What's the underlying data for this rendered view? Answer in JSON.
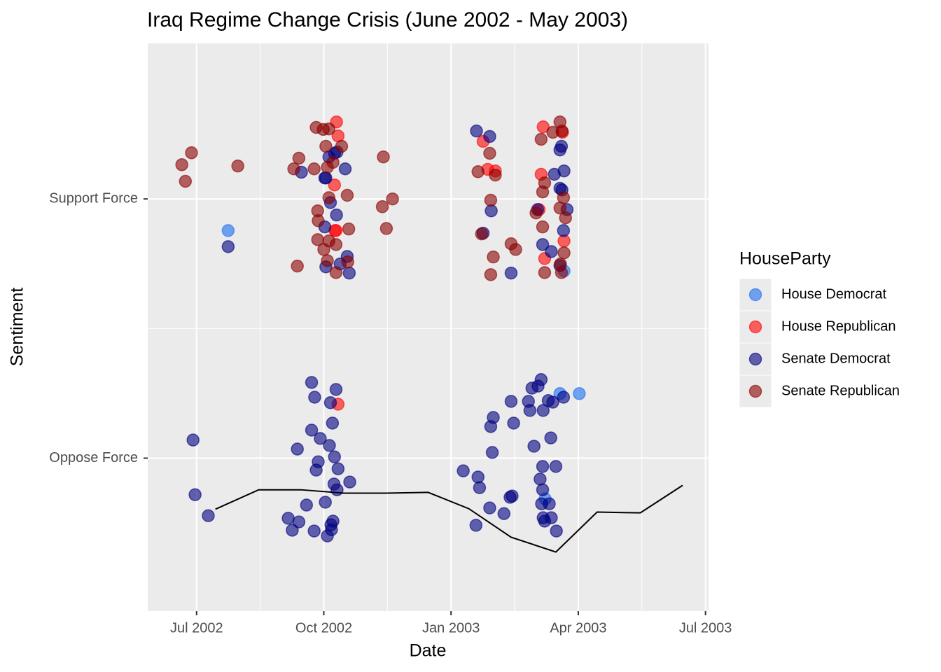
{
  "chart_data": {
    "type": "scatter",
    "title": "Iraq Regime Change Crisis (June 2002 - May 2003)",
    "x_label": "Date",
    "y_label": "Sentiment",
    "legend_title": "HouseParty",
    "legend_position": "right",
    "grid": true,
    "xlim": [
      2002.404,
      2003.506
    ],
    "xticks": [
      {
        "value": 2002.5,
        "label": "Jul 2002"
      },
      {
        "value": 2002.75,
        "label": "Oct 2002"
      },
      {
        "value": 2003.0,
        "label": "Jan 2003"
      },
      {
        "value": 2003.25,
        "label": "Apr 2003"
      },
      {
        "value": 2003.5,
        "label": "Jul 2003"
      }
    ],
    "ylim": [
      0.41,
      2.6
    ],
    "yticks": [
      {
        "value": 1,
        "label": "Oppose Force"
      },
      {
        "value": 2,
        "label": "Support Force"
      }
    ],
    "series": [
      {
        "name": "House Democrat",
        "color": "#1c6ef0",
        "x": [
          2002.562,
          2003.222,
          2003.214,
          2003.185,
          2003.252
        ],
        "values": [
          1.878,
          1.722,
          1.249,
          0.843,
          1.249
        ]
      },
      {
        "name": "House Republican",
        "color": "#ff0000",
        "x": [
          2002.775,
          2002.778,
          2002.771,
          2002.774,
          2003.063,
          2003.072,
          2003.087,
          2003.181,
          2003.177,
          2003.219,
          2003.173,
          2003.222,
          2002.778,
          2002.772,
          2003.184
        ],
        "values": [
          2.297,
          2.243,
          2.054,
          1.878,
          2.222,
          2.114,
          2.108,
          2.278,
          2.095,
          2.257,
          1.959,
          1.838,
          1.208,
          1.878,
          1.77
        ]
      },
      {
        "name": "Senate Democrat",
        "color": "#000080",
        "x": [
          2002.706,
          2002.754,
          2002.76,
          2002.771,
          2002.776,
          2002.792,
          2002.763,
          2002.775,
          2002.796,
          2002.754,
          2002.782,
          2002.8,
          2002.752,
          2003.05,
          2003.076,
          2003.079,
          2003.063,
          2003.118,
          2003.217,
          2003.214,
          2003.222,
          2003.203,
          2003.214,
          2003.218,
          2003.228,
          2003.17,
          2003.18,
          2003.197,
          2003.221,
          2003.214,
          2002.562,
          2002.752,
          2002.493,
          2002.497,
          2002.523,
          2002.68,
          2002.688,
          2002.701,
          2002.726,
          2002.732,
          2002.698,
          2002.726,
          2002.735,
          2002.739,
          2002.743,
          2002.716,
          2002.731,
          2002.753,
          2002.764,
          2002.765,
          2002.768,
          2002.774,
          2002.763,
          2002.767,
          2002.761,
          2002.771,
          2002.77,
          2002.776,
          2002.801,
          2002.778,
          2003.024,
          2003.053,
          2003.056,
          2003.049,
          2003.076,
          2003.104,
          2003.116,
          2003.12,
          2003.081,
          2003.078,
          2003.083,
          2003.123,
          2003.118,
          2003.152,
          2003.159,
          2003.171,
          2003.177,
          2003.191,
          2003.163,
          2003.196,
          2003.155,
          2003.18,
          2003.175,
          2003.18,
          2003.178,
          2003.181,
          2003.184,
          2003.197,
          2003.207,
          2003.206,
          2003.181,
          2003.2,
          2003.221,
          2003.193,
          2002.757
        ],
        "values": [
          2.103,
          2.081,
          2.162,
          2.176,
          2.181,
          2.116,
          1.986,
          1.938,
          1.778,
          1.738,
          1.749,
          1.714,
          1.892,
          2.262,
          2.241,
          1.954,
          1.868,
          1.714,
          2.203,
          2.189,
          2.108,
          2.095,
          2.041,
          2.035,
          1.959,
          1.959,
          1.824,
          1.797,
          1.878,
          1.743,
          1.816,
          2.081,
          1.07,
          0.859,
          0.778,
          0.768,
          0.722,
          0.754,
          1.292,
          1.235,
          1.035,
          1.108,
          0.954,
          0.986,
          1.076,
          0.819,
          0.719,
          0.83,
          0.743,
          0.724,
          0.757,
          1.265,
          1.214,
          1.135,
          1.049,
          1.005,
          0.9,
          0.878,
          0.908,
          0.959,
          0.951,
          0.927,
          0.886,
          0.741,
          0.808,
          0.786,
          0.849,
          0.854,
          1.022,
          1.122,
          1.157,
          1.135,
          1.219,
          1.219,
          1.27,
          1.278,
          1.303,
          1.222,
          1.046,
          1.078,
          1.184,
          0.968,
          0.919,
          0.878,
          0.824,
          0.77,
          0.757,
          0.77,
          0.719,
          0.968,
          1.184,
          1.216,
          1.235,
          0.824,
          0.7
        ]
      },
      {
        "name": "Senate Republican",
        "color": "#8b0000",
        "x": [
          2002.471,
          2002.49,
          2002.478,
          2002.581,
          2002.735,
          2002.749,
          2002.76,
          2002.701,
          2002.691,
          2002.731,
          2002.757,
          2002.768,
          2002.738,
          2002.76,
          2002.796,
          2002.739,
          2002.738,
          2002.75,
          2002.76,
          2002.774,
          2002.799,
          2002.698,
          2002.757,
          2002.774,
          2002.797,
          2002.867,
          2002.865,
          2002.873,
          2002.885,
          2002.754,
          2002.785,
          2003.076,
          2003.053,
          2003.087,
          2003.078,
          2003.06,
          2003.083,
          2003.078,
          2003.118,
          2003.127,
          2003.214,
          2003.2,
          2003.218,
          2003.177,
          2003.167,
          2003.184,
          2003.18,
          2003.214,
          2003.221,
          2003.184,
          2003.217,
          2003.215,
          2003.18,
          2003.225,
          2003.222
        ],
        "values": [
          2.132,
          2.178,
          2.068,
          2.127,
          2.276,
          2.268,
          2.27,
          2.157,
          2.116,
          2.116,
          2.122,
          2.141,
          1.954,
          2.005,
          2.014,
          1.916,
          1.843,
          1.805,
          1.838,
          1.824,
          1.884,
          1.741,
          1.762,
          1.716,
          1.757,
          2.162,
          1.97,
          1.886,
          2.0,
          2.203,
          2.203,
          2.176,
          2.105,
          2.092,
          1.995,
          1.865,
          1.776,
          1.708,
          1.827,
          1.805,
          2.297,
          2.257,
          2.262,
          2.23,
          1.946,
          2.062,
          2.027,
          1.965,
          2.005,
          1.716,
          1.716,
          1.749,
          1.892,
          1.927,
          1.792
        ]
      }
    ],
    "line": {
      "color": "#000000",
      "x": [
        2002.537,
        2002.622,
        2002.705,
        2002.79,
        2002.873,
        2002.955,
        2003.035,
        2003.118,
        2003.206,
        2003.287,
        2003.372,
        2003.455
      ],
      "values": [
        0.803,
        0.878,
        0.878,
        0.865,
        0.865,
        0.868,
        0.805,
        0.695,
        0.638,
        0.792,
        0.789,
        0.895
      ]
    }
  }
}
